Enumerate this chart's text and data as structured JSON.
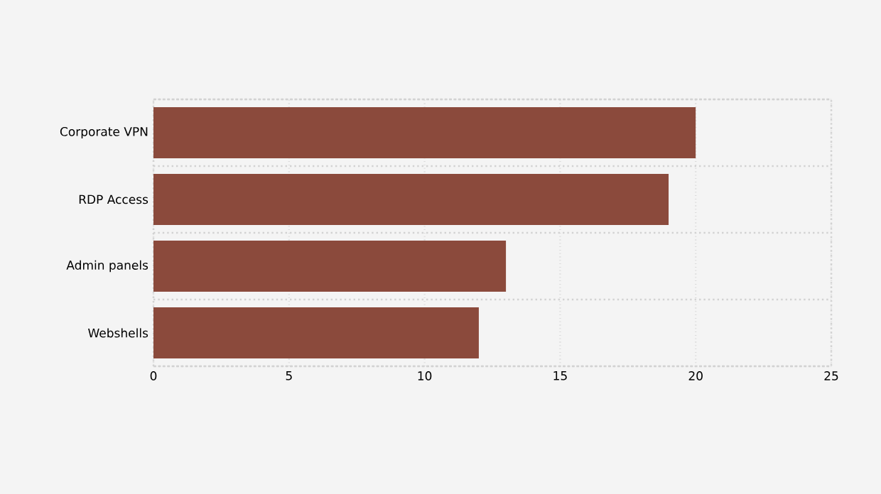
{
  "chart_data": {
    "type": "bar",
    "orientation": "horizontal",
    "categories": [
      "Corporate VPN",
      "RDP Access",
      "Admin panels",
      "Webshells"
    ],
    "values": [
      20,
      19,
      13,
      12
    ],
    "color": "#8b4a3c",
    "xlim": [
      0,
      25
    ],
    "xticks": [
      0,
      5,
      10,
      15,
      20,
      25
    ],
    "grid": true
  }
}
